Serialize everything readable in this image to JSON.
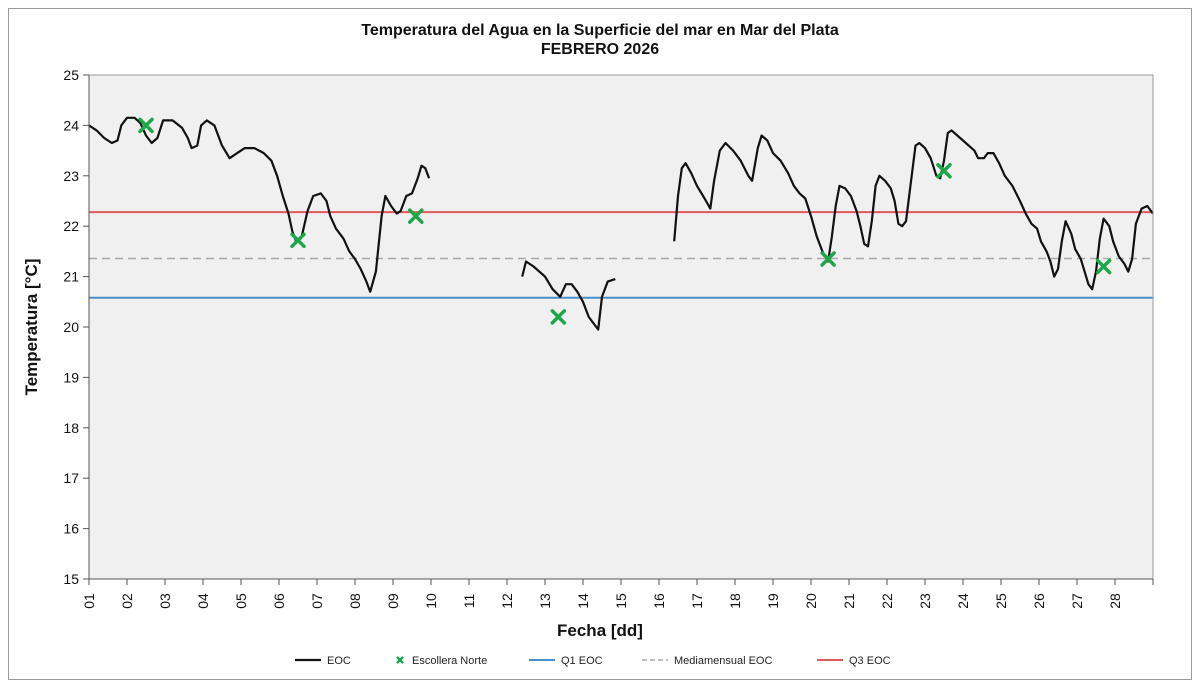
{
  "chart_data": {
    "type": "line",
    "title": "Temperatura del Agua en la Superficie del mar en Mar del Plata",
    "subtitle": "FEBRERO 2026",
    "xlabel": "Fecha [dd]",
    "ylabel": "Temperatura [°C]",
    "xlim": [
      1,
      29
    ],
    "ylim": [
      15,
      25
    ],
    "x_tick_labels": [
      "01",
      "02",
      "03",
      "04",
      "05",
      "06",
      "07",
      "08",
      "09",
      "10",
      "11",
      "12",
      "13",
      "14",
      "15",
      "16",
      "17",
      "18",
      "19",
      "20",
      "21",
      "22",
      "23",
      "24",
      "25",
      "26",
      "27",
      "28"
    ],
    "y_ticks": [
      15,
      16,
      17,
      18,
      19,
      20,
      21,
      22,
      23,
      24,
      25
    ],
    "grid": false,
    "legend_position": "bottom",
    "colors": {
      "eoc": "#111111",
      "escollera": "#1fa54a",
      "q1": "#4a8fc8",
      "median": "#a8a8a8",
      "q3": "#e05a5a",
      "plot_bg": "#f0f0f0"
    },
    "series": [
      {
        "name": "EOC",
        "kind": "line",
        "segments": [
          [
            [
              1.0,
              24.0
            ],
            [
              1.2,
              23.9
            ],
            [
              1.4,
              23.75
            ],
            [
              1.6,
              23.65
            ],
            [
              1.75,
              23.7
            ],
            [
              1.85,
              24.0
            ],
            [
              2.0,
              24.15
            ],
            [
              2.2,
              24.15
            ],
            [
              2.35,
              24.05
            ],
            [
              2.5,
              23.8
            ],
            [
              2.65,
              23.65
            ],
            [
              2.8,
              23.75
            ],
            [
              2.95,
              24.1
            ],
            [
              3.2,
              24.1
            ],
            [
              3.45,
              23.95
            ],
            [
              3.6,
              23.75
            ],
            [
              3.7,
              23.55
            ],
            [
              3.85,
              23.6
            ],
            [
              3.95,
              24.0
            ],
            [
              4.1,
              24.1
            ],
            [
              4.3,
              24.0
            ],
            [
              4.5,
              23.6
            ],
            [
              4.7,
              23.35
            ],
            [
              4.9,
              23.45
            ],
            [
              5.1,
              23.55
            ],
            [
              5.35,
              23.55
            ],
            [
              5.6,
              23.45
            ],
            [
              5.8,
              23.3
            ],
            [
              5.95,
              23.0
            ],
            [
              6.1,
              22.6
            ],
            [
              6.25,
              22.25
            ],
            [
              6.35,
              21.9
            ],
            [
              6.45,
              21.7
            ],
            [
              6.6,
              21.8
            ],
            [
              6.75,
              22.3
            ],
            [
              6.9,
              22.6
            ],
            [
              7.1,
              22.65
            ],
            [
              7.25,
              22.5
            ],
            [
              7.35,
              22.2
            ],
            [
              7.5,
              21.95
            ],
            [
              7.7,
              21.75
            ],
            [
              7.85,
              21.5
            ],
            [
              8.0,
              21.35
            ],
            [
              8.15,
              21.15
            ],
            [
              8.3,
              20.9
            ],
            [
              8.4,
              20.7
            ],
            [
              8.55,
              21.1
            ],
            [
              8.7,
              22.2
            ],
            [
              8.8,
              22.6
            ],
            [
              8.95,
              22.4
            ],
            [
              9.1,
              22.25
            ],
            [
              9.2,
              22.3
            ],
            [
              9.35,
              22.6
            ],
            [
              9.5,
              22.65
            ],
            [
              9.65,
              22.95
            ],
            [
              9.75,
              23.2
            ],
            [
              9.85,
              23.15
            ],
            [
              9.95,
              22.95
            ]
          ],
          [
            [
              12.4,
              21.0
            ],
            [
              12.5,
              21.3
            ],
            [
              12.7,
              21.2
            ],
            [
              12.85,
              21.1
            ],
            [
              13.0,
              21.0
            ],
            [
              13.2,
              20.75
            ],
            [
              13.4,
              20.6
            ],
            [
              13.55,
              20.85
            ],
            [
              13.7,
              20.85
            ],
            [
              13.85,
              20.7
            ],
            [
              14.0,
              20.5
            ],
            [
              14.15,
              20.2
            ],
            [
              14.3,
              20.05
            ],
            [
              14.4,
              19.95
            ],
            [
              14.5,
              20.6
            ],
            [
              14.65,
              20.9
            ],
            [
              14.85,
              20.95
            ]
          ],
          [
            [
              16.4,
              21.7
            ],
            [
              16.5,
              22.6
            ],
            [
              16.6,
              23.15
            ],
            [
              16.7,
              23.25
            ],
            [
              16.85,
              23.05
            ],
            [
              17.0,
              22.8
            ],
            [
              17.2,
              22.55
            ],
            [
              17.35,
              22.35
            ],
            [
              17.45,
              22.9
            ],
            [
              17.6,
              23.5
            ],
            [
              17.75,
              23.65
            ],
            [
              17.95,
              23.5
            ],
            [
              18.15,
              23.3
            ],
            [
              18.35,
              23.0
            ],
            [
              18.45,
              22.9
            ],
            [
              18.6,
              23.55
            ],
            [
              18.7,
              23.8
            ],
            [
              18.85,
              23.7
            ],
            [
              19.0,
              23.45
            ],
            [
              19.2,
              23.3
            ],
            [
              19.4,
              23.05
            ],
            [
              19.55,
              22.8
            ],
            [
              19.7,
              22.65
            ],
            [
              19.85,
              22.55
            ],
            [
              20.0,
              22.2
            ],
            [
              20.15,
              21.8
            ],
            [
              20.3,
              21.5
            ],
            [
              20.45,
              21.3
            ],
            [
              20.55,
              21.8
            ],
            [
              20.65,
              22.4
            ],
            [
              20.75,
              22.8
            ],
            [
              20.9,
              22.75
            ],
            [
              21.05,
              22.6
            ],
            [
              21.2,
              22.3
            ],
            [
              21.3,
              22.0
            ],
            [
              21.4,
              21.65
            ],
            [
              21.5,
              21.6
            ],
            [
              21.6,
              22.1
            ],
            [
              21.7,
              22.8
            ],
            [
              21.8,
              23.0
            ],
            [
              21.95,
              22.9
            ],
            [
              22.1,
              22.75
            ],
            [
              22.2,
              22.5
            ],
            [
              22.3,
              22.05
            ],
            [
              22.4,
              22.0
            ],
            [
              22.5,
              22.1
            ],
            [
              22.6,
              22.7
            ],
            [
              22.75,
              23.6
            ],
            [
              22.85,
              23.65
            ],
            [
              23.0,
              23.55
            ],
            [
              23.15,
              23.35
            ],
            [
              23.3,
              23.0
            ],
            [
              23.4,
              22.95
            ],
            [
              23.5,
              23.3
            ],
            [
              23.6,
              23.85
            ],
            [
              23.7,
              23.9
            ],
            [
              23.85,
              23.8
            ],
            [
              24.0,
              23.7
            ],
            [
              24.15,
              23.6
            ],
            [
              24.3,
              23.5
            ],
            [
              24.4,
              23.35
            ],
            [
              24.55,
              23.35
            ],
            [
              24.65,
              23.45
            ],
            [
              24.8,
              23.45
            ],
            [
              24.95,
              23.25
            ],
            [
              25.1,
              23.0
            ],
            [
              25.3,
              22.8
            ],
            [
              25.5,
              22.5
            ],
            [
              25.65,
              22.25
            ],
            [
              25.8,
              22.05
            ],
            [
              25.95,
              21.95
            ],
            [
              26.05,
              21.7
            ],
            [
              26.2,
              21.5
            ],
            [
              26.3,
              21.3
            ],
            [
              26.4,
              21.0
            ],
            [
              26.5,
              21.15
            ],
            [
              26.6,
              21.7
            ],
            [
              26.7,
              22.1
            ],
            [
              26.85,
              21.85
            ],
            [
              26.95,
              21.55
            ],
            [
              27.1,
              21.35
            ],
            [
              27.2,
              21.1
            ],
            [
              27.3,
              20.85
            ],
            [
              27.4,
              20.75
            ],
            [
              27.5,
              21.1
            ],
            [
              27.6,
              21.75
            ],
            [
              27.7,
              22.15
            ],
            [
              27.85,
              22.0
            ],
            [
              27.95,
              21.7
            ],
            [
              28.1,
              21.4
            ],
            [
              28.25,
              21.25
            ],
            [
              28.35,
              21.1
            ],
            [
              28.45,
              21.35
            ],
            [
              28.55,
              22.05
            ],
            [
              28.7,
              22.35
            ],
            [
              28.85,
              22.4
            ],
            [
              29.0,
              22.25
            ]
          ]
        ]
      },
      {
        "name": "Escollera Norte",
        "kind": "markers",
        "x": [
          2.5,
          6.5,
          9.6,
          13.35,
          20.45,
          23.5,
          27.7
        ],
        "y": [
          24.0,
          21.72,
          22.2,
          20.2,
          21.35,
          23.1,
          21.2
        ]
      },
      {
        "name": "Q1 EOC",
        "kind": "hline",
        "value": 20.58
      },
      {
        "name": "Mediamensual EOC",
        "kind": "hline",
        "value": 21.36
      },
      {
        "name": "Q3 EOC",
        "kind": "hline",
        "value": 22.28
      }
    ]
  }
}
